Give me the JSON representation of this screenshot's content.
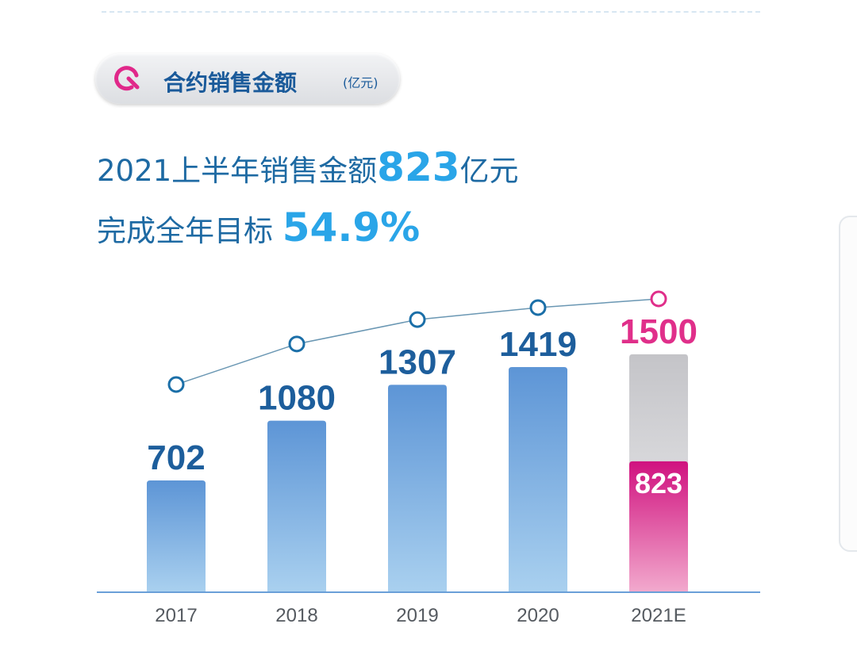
{
  "header": {
    "title": "合约销售金额",
    "unit": "(亿元)",
    "icon": "q-logo-icon"
  },
  "headline": {
    "line1_pre": "2021上半年销售金额",
    "line1_value": "823",
    "line1_post": "亿元",
    "line2_pre": "完成全年目标",
    "line2_value": "54.9%"
  },
  "chart_data": {
    "type": "bar",
    "categories": [
      "2017",
      "2018",
      "2019",
      "2020",
      "2021E"
    ],
    "series": [
      {
        "values": [
          702,
          1080,
          1307,
          1419,
          1500
        ]
      },
      {
        "values": [
          null,
          null,
          null,
          null,
          823
        ]
      }
    ],
    "bar_labels": [
      "702",
      "1080",
      "1307",
      "1419",
      "1500"
    ],
    "inner_label": "823",
    "colors": {
      "bar": "#6a9fd8",
      "target": "#cfcfd3",
      "actual": "#d51d86",
      "line": "#6a97b3",
      "marker": "#1b6fa8",
      "highlight": "#e02f8a"
    },
    "trend_line": true,
    "grid": false
  }
}
